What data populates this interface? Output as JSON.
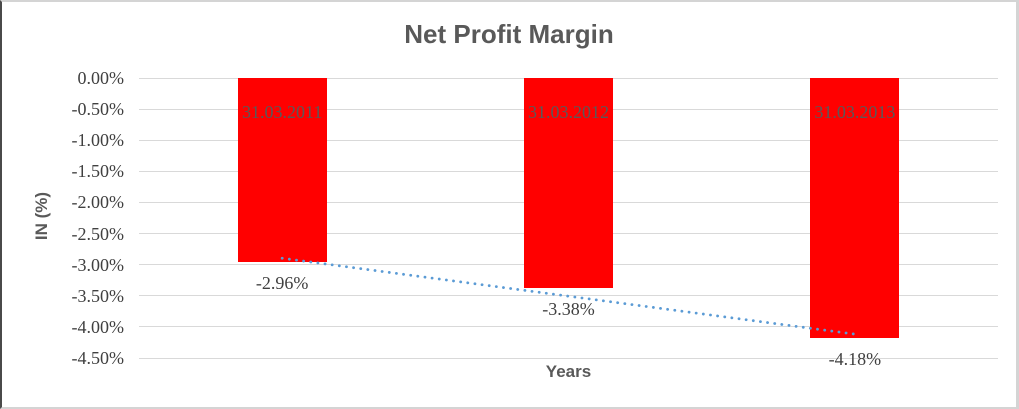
{
  "chart_data": {
    "type": "bar",
    "title": "Net Profit Margin",
    "xlabel": "Years",
    "ylabel": "IN (%)",
    "categories": [
      "31.03.2011",
      "31.03.2012",
      "31.03.2013"
    ],
    "series": [
      {
        "name": "Net Profit Margin",
        "values": [
          -2.96,
          -3.38,
          -4.18
        ]
      }
    ],
    "data_labels": [
      "-2.96%",
      "-3.38%",
      "-4.18%"
    ],
    "ylim": [
      -4.5,
      0
    ],
    "ytick_step": 0.5,
    "ytick_labels": [
      "0.00%",
      "-0.50%",
      "-1.00%",
      "-1.50%",
      "-2.00%",
      "-2.50%",
      "-3.00%",
      "-3.50%",
      "-4.00%",
      "-4.50%"
    ],
    "grid": true,
    "legend": "none",
    "bar_color": "#ff0000",
    "bar_label_color": "#595959",
    "gridline_color": "#d9d9d9",
    "tick_label_color": "#404040",
    "title_color": "#595959",
    "trendline": {
      "type": "linear",
      "style": "dotted",
      "color": "#5b9bd5"
    }
  }
}
